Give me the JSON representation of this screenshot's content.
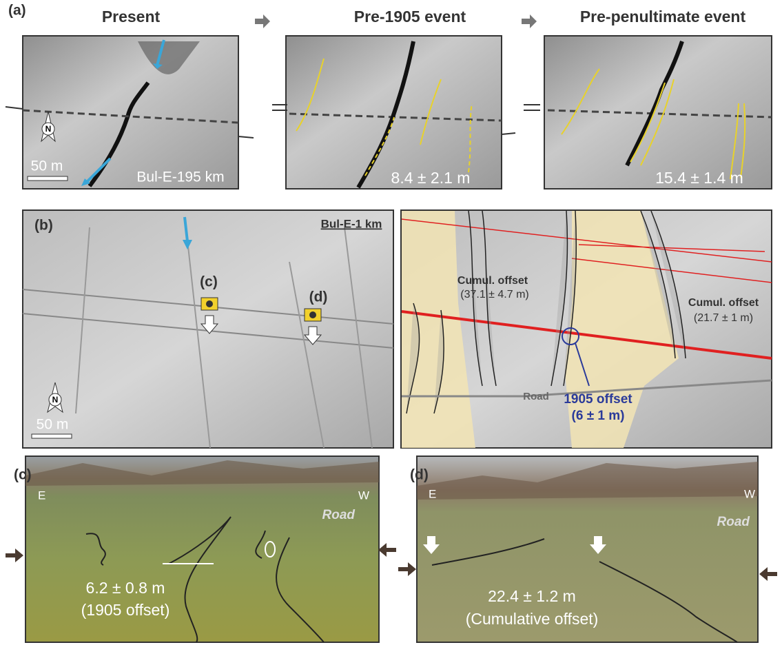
{
  "panel_a": {
    "label": "(a)",
    "frames": [
      {
        "title": "Present",
        "caption": "Bul-E-195 km",
        "north": "N",
        "scale": "50 m"
      },
      {
        "title": "Pre-1905 event",
        "caption": "8.4 ± 2.1 m"
      },
      {
        "title": "Pre-penultimate event",
        "caption": "15.4 ± 1.4 m"
      }
    ]
  },
  "panel_b": {
    "label": "(b)",
    "site": "Bul-E-1 km",
    "photo_c": "(c)",
    "photo_d": "(d)",
    "north": "N",
    "scale": "50 m",
    "offset_left": [
      "Cumul. offset",
      "(37.1 ± 4.7 m)"
    ],
    "offset_right": [
      "Cumul. offset",
      "(21.7 ± 1 m)"
    ],
    "road": "Road",
    "offset_1905": [
      "1905 offset",
      "(6 ± 1 m)"
    ]
  },
  "panel_c": {
    "label": "(c)",
    "east": "E",
    "west": "W",
    "road": "Road",
    "offset": "6.2 ± 0.8 m",
    "note": "(1905 offset)"
  },
  "panel_d": {
    "label": "(d)",
    "east": "E",
    "west": "W",
    "road": "Road",
    "offset": "22.4 ± 1.2 m",
    "note": "(Cumulative offset)"
  }
}
